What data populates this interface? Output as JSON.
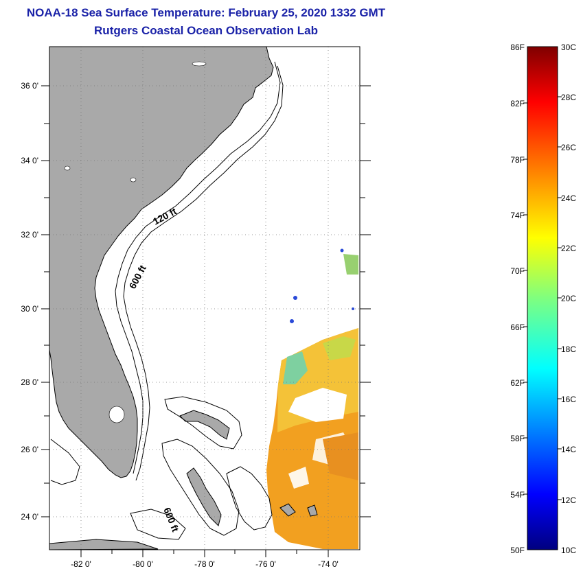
{
  "title": "NOAA-18 Sea Surface Temperature:  February 25, 2020 1332 GMT",
  "subtitle": "Rutgers Coastal Ocean Observation Lab",
  "map": {
    "lat_labels": [
      "36 0'",
      "34 0'",
      "32 0'",
      "30 0'",
      "28 0'",
      "26 0'",
      "24 0'"
    ],
    "lon_labels": [
      "-82 0'",
      "-80 0'",
      "-78 0'",
      "-76 0'",
      "-74 0'"
    ],
    "contour_labels": {
      "inner": "120 ft",
      "outer": "600 ft",
      "bahamas": "600 ft"
    },
    "colors": {
      "land": "#a9a9a9",
      "ocean": "#ffffff",
      "coast": "#000000"
    }
  },
  "colorbar": {
    "f_labels": [
      "86F",
      "82F",
      "78F",
      "74F",
      "70F",
      "66F",
      "62F",
      "58F",
      "54F",
      "50F"
    ],
    "c_labels": [
      "30C",
      "28C",
      "26C",
      "24C",
      "22C",
      "20C",
      "18C",
      "16C",
      "14C",
      "12C",
      "10C"
    ],
    "range_c": [
      10,
      30
    ],
    "range_f": [
      50,
      86
    ],
    "colormap": "jet"
  }
}
